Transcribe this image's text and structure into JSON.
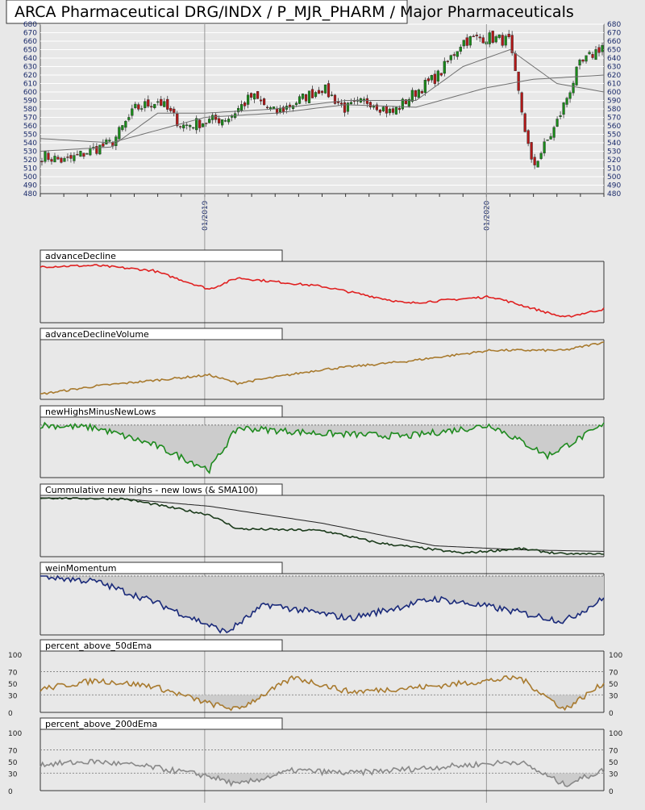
{
  "header": {
    "title": "ARCA Pharmaceutical DRG/INDX / P_MJR_PHARM / Major Pharmaceuticals"
  },
  "colors": {
    "background": "#e8e8e8",
    "up_candle": "#1a8a1a",
    "down_candle": "#b01818",
    "ma_line": "#707070",
    "advance_decline": "#e02020",
    "advance_decline_volume": "#a87a2e",
    "new_highs_lows": "#1e8a1e",
    "cumulative": "#1a3a1a",
    "wein_momentum": "#1a2a7a",
    "percent50": "#a87a2e",
    "percent200": "#888888",
    "fill": "#cccccc"
  },
  "chart_data": [
    {
      "type": "candlestick",
      "name": "price",
      "title": "ARCA Pharmaceutical DRG/INDX / P_MJR_PHARM / Major Pharmaceuticals",
      "ylim": [
        480,
        680
      ],
      "y_ticks": [
        480,
        490,
        500,
        510,
        520,
        530,
        540,
        550,
        560,
        570,
        580,
        590,
        600,
        610,
        620,
        630,
        640,
        650,
        660,
        670,
        680
      ],
      "x_ticks": [
        "01/2019",
        "01/2020"
      ],
      "x_range": [
        "2018-06",
        "2020-06"
      ],
      "close_points": [
        [
          "2018-06",
          525
        ],
        [
          "2018-07",
          518
        ],
        [
          "2018-08",
          530
        ],
        [
          "2018-09",
          540
        ],
        [
          "2018-10",
          580
        ],
        [
          "2018-11",
          590
        ],
        [
          "2018-12",
          560
        ],
        [
          "2019-01",
          565
        ],
        [
          "2019-02",
          570
        ],
        [
          "2019-03",
          595
        ],
        [
          "2019-04",
          575
        ],
        [
          "2019-05",
          590
        ],
        [
          "2019-06",
          605
        ],
        [
          "2019-07",
          580
        ],
        [
          "2019-08",
          590
        ],
        [
          "2019-09",
          575
        ],
        [
          "2019-10",
          600
        ],
        [
          "2019-11",
          620
        ],
        [
          "2019-12",
          660
        ],
        [
          "2020-01",
          665
        ],
        [
          "2020-02",
          660
        ],
        [
          "2020-03",
          510
        ],
        [
          "2020-04",
          560
        ],
        [
          "2020-05",
          630
        ],
        [
          "2020-06",
          655
        ]
      ],
      "ma_fast": [
        [
          "2018-06",
          530
        ],
        [
          "2018-09",
          535
        ],
        [
          "2018-11",
          575
        ],
        [
          "2019-01",
          575
        ],
        [
          "2019-04",
          580
        ],
        [
          "2019-07",
          590
        ],
        [
          "2019-10",
          590
        ],
        [
          "2019-12",
          630
        ],
        [
          "2020-02",
          650
        ],
        [
          "2020-04",
          610
        ],
        [
          "2020-06",
          600
        ]
      ],
      "ma_slow": [
        [
          "2018-06",
          545
        ],
        [
          "2018-09",
          540
        ],
        [
          "2019-01",
          570
        ],
        [
          "2019-04",
          575
        ],
        [
          "2019-07",
          585
        ],
        [
          "2019-10",
          582
        ],
        [
          "2020-01",
          605
        ],
        [
          "2020-03",
          615
        ],
        [
          "2020-06",
          620
        ]
      ]
    },
    {
      "type": "line",
      "name": "advanceDecline",
      "title": "advanceDecline",
      "points": [
        [
          0,
          0.95
        ],
        [
          0.1,
          0.97
        ],
        [
          0.2,
          0.88
        ],
        [
          0.3,
          0.55
        ],
        [
          0.35,
          0.75
        ],
        [
          0.5,
          0.6
        ],
        [
          0.65,
          0.3
        ],
        [
          0.8,
          0.42
        ],
        [
          0.93,
          0.05
        ],
        [
          1,
          0.2
        ]
      ]
    },
    {
      "type": "line",
      "name": "advanceDeclineVolume",
      "title": "advanceDeclineVolume",
      "points": [
        [
          0,
          0.05
        ],
        [
          0.1,
          0.2
        ],
        [
          0.2,
          0.3
        ],
        [
          0.3,
          0.4
        ],
        [
          0.35,
          0.25
        ],
        [
          0.5,
          0.5
        ],
        [
          0.65,
          0.65
        ],
        [
          0.8,
          0.85
        ],
        [
          0.93,
          0.85
        ],
        [
          1,
          1.0
        ]
      ]
    },
    {
      "type": "area",
      "name": "newHighsMinusNewLows",
      "title": "newHighsMinusNewLows",
      "points": [
        [
          0,
          0.9
        ],
        [
          0.1,
          0.85
        ],
        [
          0.2,
          0.55
        ],
        [
          0.3,
          0.1
        ],
        [
          0.35,
          0.85
        ],
        [
          0.5,
          0.75
        ],
        [
          0.65,
          0.7
        ],
        [
          0.8,
          0.9
        ],
        [
          0.9,
          0.35
        ],
        [
          1,
          0.9
        ]
      ]
    },
    {
      "type": "line",
      "name": "cumulative",
      "title": "Cummulative new highs - new lows (& SMA100)",
      "points": [
        [
          0,
          1.0
        ],
        [
          0.15,
          0.98
        ],
        [
          0.3,
          0.7
        ],
        [
          0.35,
          0.45
        ],
        [
          0.5,
          0.42
        ],
        [
          0.6,
          0.2
        ],
        [
          0.75,
          0.02
        ],
        [
          0.85,
          0.1
        ],
        [
          0.93,
          0.0
        ],
        [
          1,
          0.0
        ]
      ],
      "sma": [
        [
          0,
          1.0
        ],
        [
          0.15,
          0.98
        ],
        [
          0.3,
          0.85
        ],
        [
          0.5,
          0.55
        ],
        [
          0.7,
          0.15
        ],
        [
          0.85,
          0.08
        ],
        [
          1,
          0.05
        ]
      ]
    },
    {
      "type": "area",
      "name": "weinMomentum",
      "title": "weinMomentum",
      "points": [
        [
          0,
          1.0
        ],
        [
          0.1,
          0.9
        ],
        [
          0.2,
          0.55
        ],
        [
          0.33,
          0.0
        ],
        [
          0.4,
          0.5
        ],
        [
          0.55,
          0.25
        ],
        [
          0.7,
          0.6
        ],
        [
          0.8,
          0.45
        ],
        [
          0.93,
          0.2
        ],
        [
          1,
          0.6
        ]
      ]
    },
    {
      "type": "line",
      "name": "percent_above_50dEma",
      "title": "percent_above_50dEma",
      "ylim": [
        0,
        100
      ],
      "y_ticks": [
        0,
        30,
        50,
        70,
        100
      ],
      "points": [
        [
          0,
          40
        ],
        [
          0.1,
          55
        ],
        [
          0.2,
          45
        ],
        [
          0.3,
          15
        ],
        [
          0.35,
          5
        ],
        [
          0.45,
          60
        ],
        [
          0.55,
          35
        ],
        [
          0.7,
          45
        ],
        [
          0.85,
          60
        ],
        [
          0.93,
          5
        ],
        [
          1,
          50
        ]
      ]
    },
    {
      "type": "line",
      "name": "percent_above_200dEma",
      "title": "percent_above_200dEma",
      "ylim": [
        0,
        100
      ],
      "y_ticks": [
        0,
        30,
        50,
        70,
        100
      ],
      "points": [
        [
          0,
          45
        ],
        [
          0.1,
          50
        ],
        [
          0.2,
          40
        ],
        [
          0.3,
          25
        ],
        [
          0.35,
          10
        ],
        [
          0.45,
          35
        ],
        [
          0.55,
          30
        ],
        [
          0.7,
          40
        ],
        [
          0.85,
          50
        ],
        [
          0.93,
          10
        ],
        [
          1,
          35
        ]
      ]
    }
  ]
}
